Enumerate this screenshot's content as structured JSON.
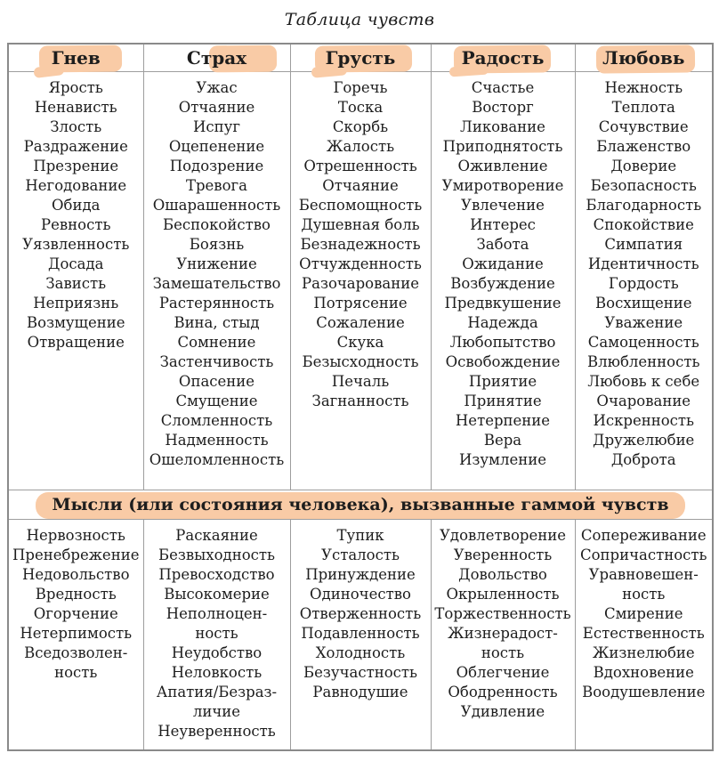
{
  "title": "Таблица чувств",
  "colors": {
    "highlight": "#f9cba6",
    "border": "#9e9e9e",
    "text": "#1d1d1d"
  },
  "table": {
    "section2_header": "Мысли (или состояния человека), вызванные гаммой чувств",
    "columns": [
      {
        "header": "Гнев",
        "feelings": [
          "Ярость",
          "Ненависть",
          "Злость",
          "Раздражение",
          "Презрение",
          "Негодование",
          "Обида",
          "Ревность",
          "Уязвленность",
          "Досада",
          "Зависть",
          "Неприязнь",
          "Возмущение",
          "Отвращение"
        ],
        "thoughts": [
          "Нервозность",
          "Пренебрежение",
          "Недовольство",
          "Вредность",
          "Огорчение",
          "Нетерпимость",
          "Вседозволен-\nность"
        ]
      },
      {
        "header": "Страх",
        "feelings": [
          "Ужас",
          "Отчаяние",
          "Испуг",
          "Оцепенение",
          "Подозрение",
          "Тревога",
          "Ошарашенность",
          "Беспокойство",
          "Боязнь",
          "Унижение",
          "Замешательство",
          "Растерянность",
          "Вина, стыд",
          "Сомнение",
          "Застенчивость",
          "Опасение",
          "Смущение",
          "Сломленность",
          "Надменность",
          "Ошеломленность"
        ],
        "thoughts": [
          "Раскаяние",
          "Безвыходность",
          "Превосходство",
          "Высокомерие",
          "Неполноцен-\nность",
          "Неудобство",
          "Неловкость",
          "Апатия/Безраз-\nличие",
          "Неуверенность"
        ]
      },
      {
        "header": "Грусть",
        "feelings": [
          "Горечь",
          "Тоска",
          "Скорбь",
          "Жалость",
          "Отрешенность",
          "Отчаяние",
          "Беспомощность",
          "Душевная боль",
          "Безнадежность",
          "Отчужденность",
          "Разочарование",
          "Потрясение",
          "Сожаление",
          "Скука",
          "Безысходность",
          "Печаль",
          "Загнанность"
        ],
        "thoughts": [
          "Тупик",
          "Усталость",
          "Принуждение",
          "Одиночество",
          "Отверженность",
          "Подавленность",
          "Холодность",
          "Безучастность",
          "Равнодушие"
        ]
      },
      {
        "header": "Радость",
        "feelings": [
          "Счастье",
          "Восторг",
          "Ликование",
          "Приподнятость",
          "Оживление",
          "Умиротворение",
          "Увлечение",
          "Интерес",
          "Забота",
          "Ожидание",
          "Возбуждение",
          "Предвкушение",
          "Надежда",
          "Любопытство",
          "Освобождение",
          "Приятие",
          "Принятие",
          "Нетерпение",
          "Вера",
          "Изумление"
        ],
        "thoughts": [
          "Удовлетворение",
          "Уверенность",
          "Довольство",
          "Окрыленность",
          "Торжественность",
          "Жизнерадост-\nность",
          "Облегчение",
          "Ободренность",
          "Удивление"
        ]
      },
      {
        "header": "Любовь",
        "feelings": [
          "Нежность",
          "Теплота",
          "Сочувствие",
          "Блаженство",
          "Доверие",
          "Безопасность",
          "Благодарность",
          "Спокойствие",
          "Симпатия",
          "Идентичность",
          "Гордость",
          "Восхищение",
          "Уважение",
          "Самоценность",
          "Влюбленность",
          "Любовь к себе",
          "Очарование",
          "Искренность",
          "Дружелюбие",
          "Доброта"
        ],
        "thoughts": [
          "Сопереживание",
          "Сопричастность",
          "Уравновешен-\nность",
          "Смирение",
          "Естественность",
          "Жизнелюбие",
          "Вдохновение",
          "Воодушевление"
        ]
      }
    ]
  }
}
